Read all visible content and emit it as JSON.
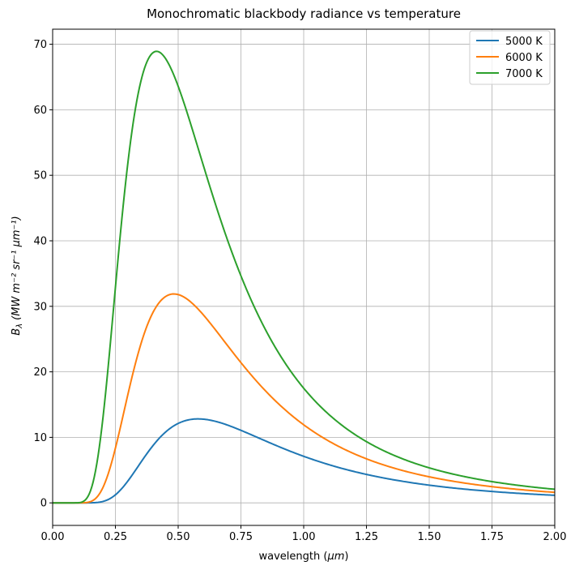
{
  "chart_data": {
    "type": "line",
    "title": "Monochromatic blackbody radiance vs temperature",
    "xlabel": {
      "main": "wavelength (",
      "italic": "μm",
      "tail": ")"
    },
    "ylabel": {
      "sym": "B",
      "sub": "λ",
      "unit": "(MW m⁻² sr⁻¹ μm⁻¹)"
    },
    "xlim": [
      0,
      2.0
    ],
    "ylim": [
      -3.44,
      72.3
    ],
    "xticks": [
      0,
      0.25,
      0.5,
      0.75,
      1.0,
      1.25,
      1.5,
      1.75,
      2.0
    ],
    "xtick_labels": [
      "0.00",
      "0.25",
      "0.50",
      "0.75",
      "1.00",
      "1.25",
      "1.50",
      "1.75",
      "2.00"
    ],
    "yticks": [
      0,
      10,
      20,
      30,
      40,
      50,
      60,
      70
    ],
    "ytick_labels": [
      "0",
      "10",
      "20",
      "30",
      "40",
      "50",
      "60",
      "70"
    ],
    "grid": true,
    "legend_position": "top-right",
    "series": [
      {
        "name": "5000 K",
        "temperature_K": 5000,
        "color": "#1f77b4"
      },
      {
        "name": "6000 K",
        "temperature_K": 6000,
        "color": "#ff7f0e"
      },
      {
        "name": "7000 K",
        "temperature_K": 7000,
        "color": "#2ca02c"
      }
    ],
    "wavelength_range_um": [
      0.001,
      2.0
    ]
  }
}
